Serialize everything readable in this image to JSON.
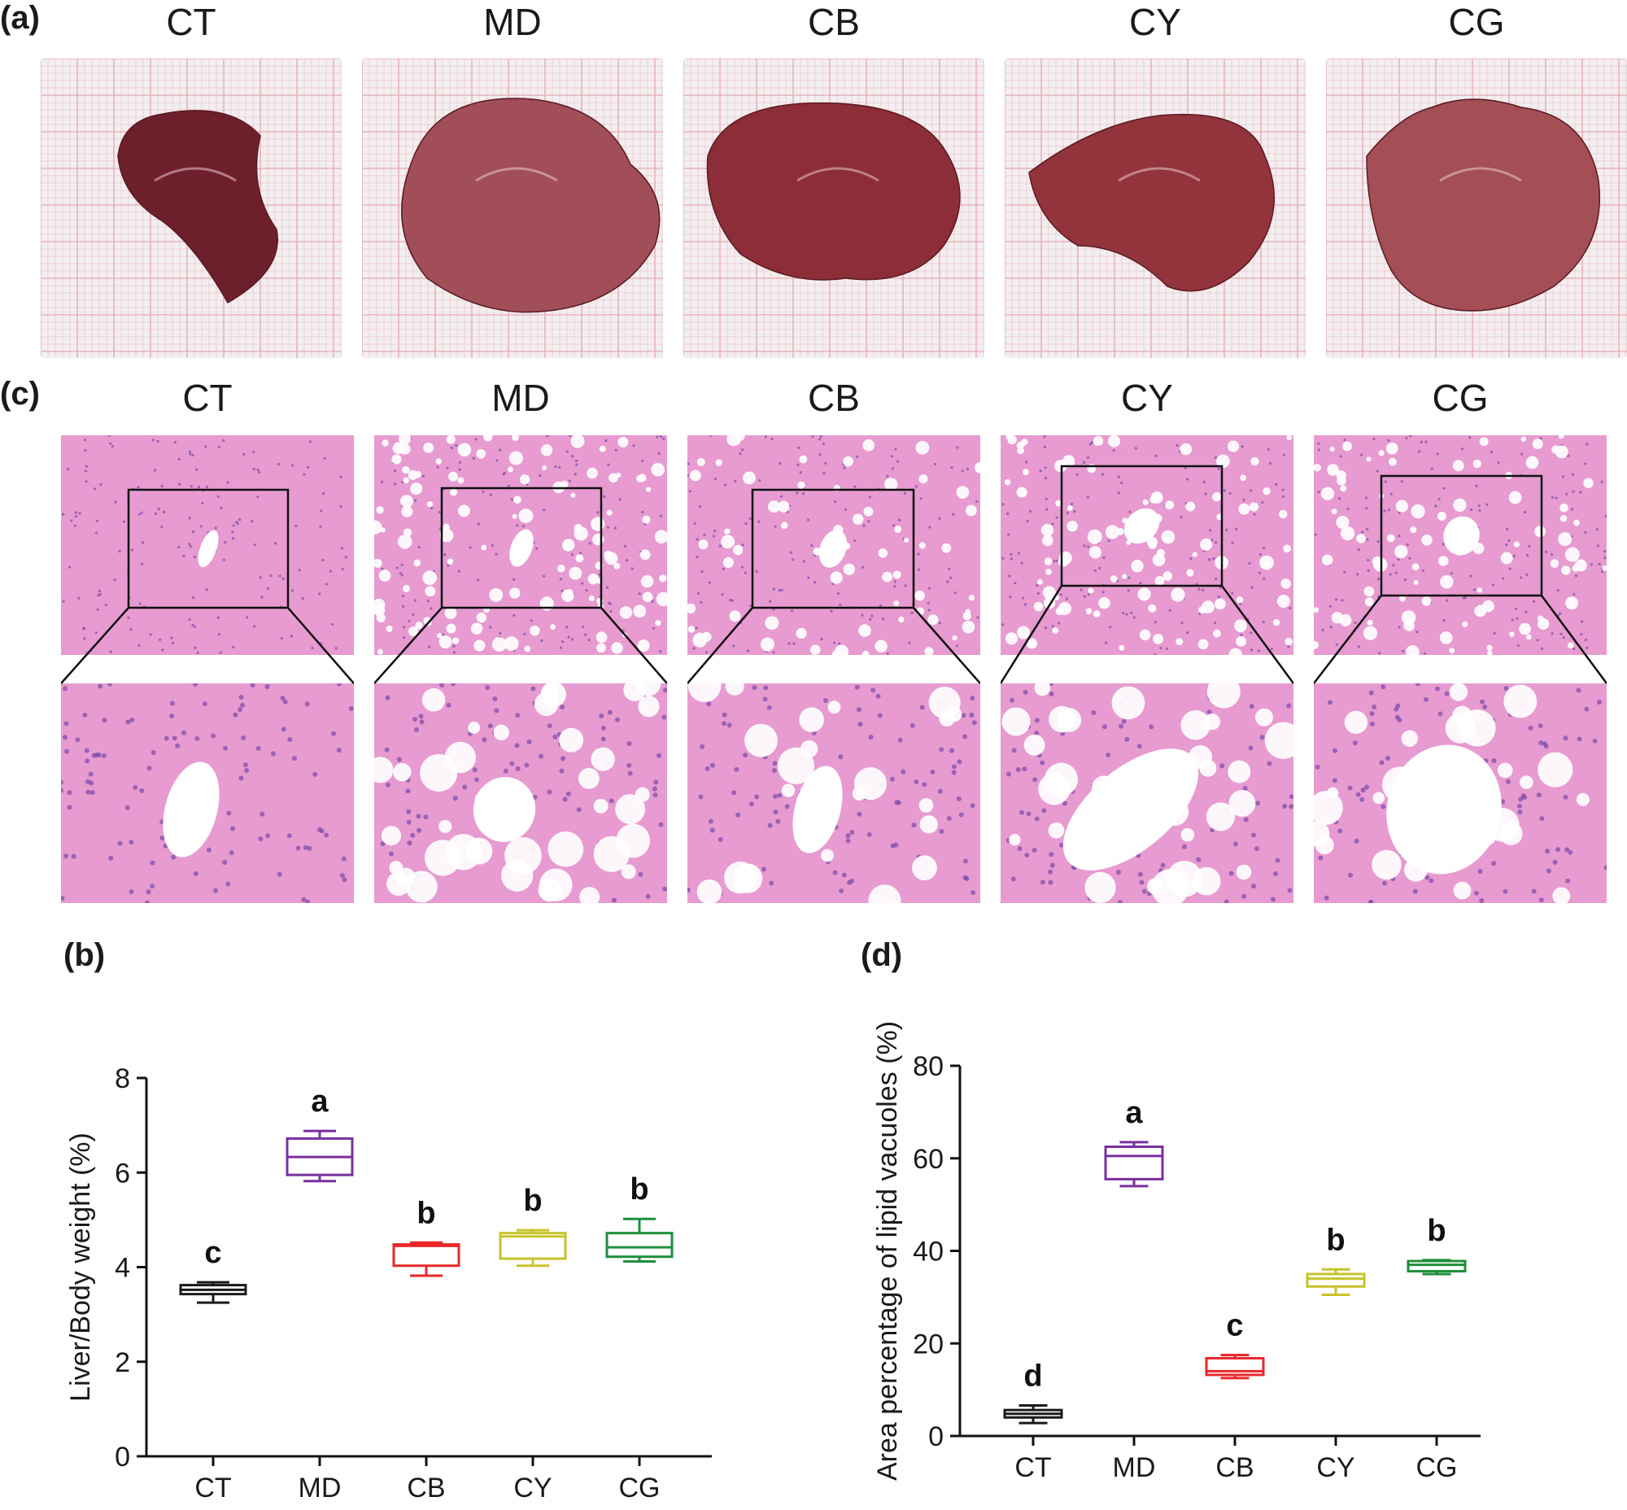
{
  "figure": {
    "panel_a": {
      "letter": "(a)",
      "groups": [
        "CT",
        "MD",
        "CB",
        "CY",
        "CG"
      ]
    },
    "panel_c": {
      "letter": "(c)",
      "groups": [
        "CT",
        "MD",
        "CB",
        "CY",
        "CG"
      ]
    },
    "panel_b": {
      "letter": "(b)"
    },
    "panel_d": {
      "letter": "(d)"
    }
  },
  "colors": {
    "CT": "#1a1a1a",
    "MD": "#7a2fa0",
    "CB": "#e8282b",
    "CY": "#c6c32b",
    "CG": "#1f8f3a",
    "liver": "#8a2f38",
    "paper_grid": "#e6a5b0",
    "tissue": "#e59ac8",
    "vacuole": "#ffffff"
  },
  "chart_data": [
    {
      "type": "box",
      "panel": "(b)",
      "ylabel": "Liver/Body weight (%)",
      "xlabel": "",
      "ylim": [
        0,
        8
      ],
      "yticks": [
        0,
        2,
        4,
        6,
        8
      ],
      "categories": [
        "CT",
        "MD",
        "CB",
        "CY",
        "CG"
      ],
      "boxes": [
        {
          "name": "CT",
          "min": 3.25,
          "q1": 3.43,
          "median": 3.52,
          "q3": 3.62,
          "max": 3.68,
          "letter": "c"
        },
        {
          "name": "MD",
          "min": 5.82,
          "q1": 5.95,
          "median": 6.33,
          "q3": 6.72,
          "max": 6.88,
          "letter": "a"
        },
        {
          "name": "CB",
          "min": 3.82,
          "q1": 4.03,
          "median": 4.45,
          "q3": 4.48,
          "max": 4.52,
          "letter": "b"
        },
        {
          "name": "CY",
          "min": 4.03,
          "q1": 4.18,
          "median": 4.65,
          "q3": 4.72,
          "max": 4.78,
          "letter": "b"
        },
        {
          "name": "CG",
          "min": 4.12,
          "q1": 4.22,
          "median": 4.42,
          "q3": 4.72,
          "max": 5.02,
          "letter": "b"
        }
      ]
    },
    {
      "type": "box",
      "panel": "(d)",
      "ylabel": "Area percentage of lipid vacuoles (%)",
      "xlabel": "",
      "ylim": [
        0,
        80
      ],
      "yticks": [
        0,
        20,
        40,
        60,
        80
      ],
      "categories": [
        "CT",
        "MD",
        "CB",
        "CY",
        "CG"
      ],
      "boxes": [
        {
          "name": "CT",
          "min": 2.8,
          "q1": 4.0,
          "median": 4.8,
          "q3": 5.6,
          "max": 6.6,
          "letter": "d"
        },
        {
          "name": "MD",
          "min": 54.0,
          "q1": 55.5,
          "median": 60.5,
          "q3": 62.5,
          "max": 63.5,
          "letter": "a"
        },
        {
          "name": "CB",
          "min": 12.5,
          "q1": 13.2,
          "median": 14.0,
          "q3": 16.8,
          "max": 17.5,
          "letter": "c"
        },
        {
          "name": "CY",
          "min": 30.5,
          "q1": 32.3,
          "median": 34.0,
          "q3": 35.0,
          "max": 36.0,
          "letter": "b"
        },
        {
          "name": "CG",
          "min": 35.0,
          "q1": 35.6,
          "median": 37.0,
          "q3": 37.8,
          "max": 38.0,
          "letter": "b"
        }
      ]
    }
  ]
}
